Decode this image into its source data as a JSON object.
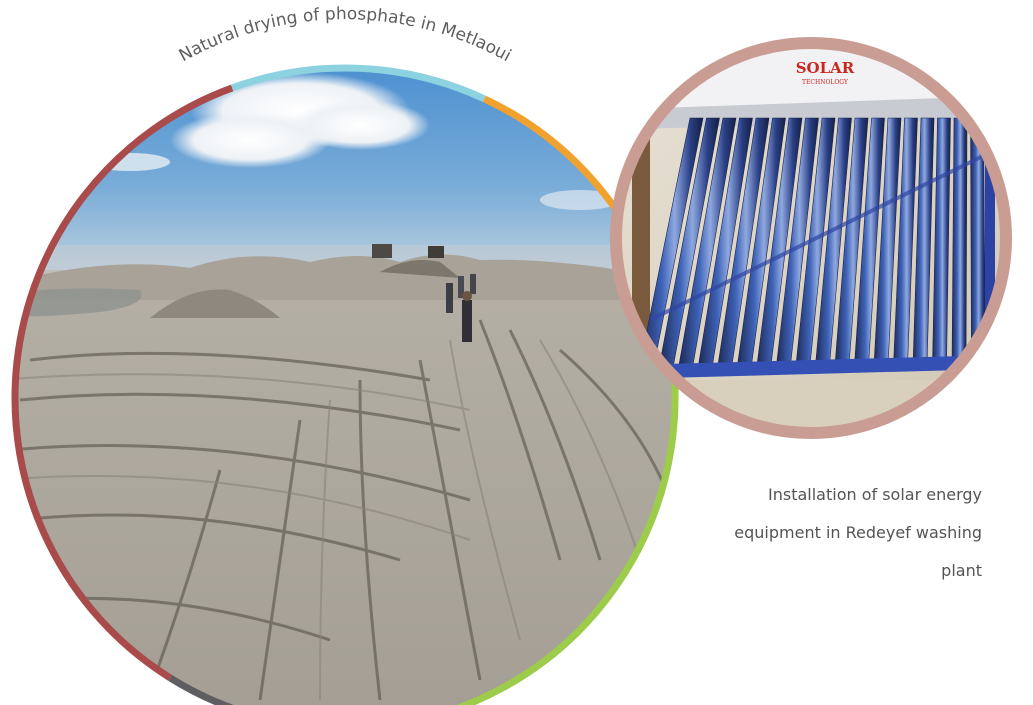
{
  "left_photo": {
    "caption": "Natural drying of phosphate in Metlaoui",
    "scene": "phosphate drying field with tire tracks, workers and bulldozers under blue sky",
    "ring_colors": [
      "#a94b4b",
      "#8dd2e0",
      "#f1a22e",
      "#9dcb4a",
      "#5e5e62"
    ]
  },
  "right_photo": {
    "brand_text": "SOLAR",
    "brand_subtext": "TECHNOLOGY",
    "scene": "evacuated-tube solar water heater on a blue frame",
    "ring_color": "#c99d93"
  },
  "right_caption": {
    "line1": "Installation of solar energy",
    "line2": "equipment in Redeyef washing",
    "line3": "plant"
  }
}
